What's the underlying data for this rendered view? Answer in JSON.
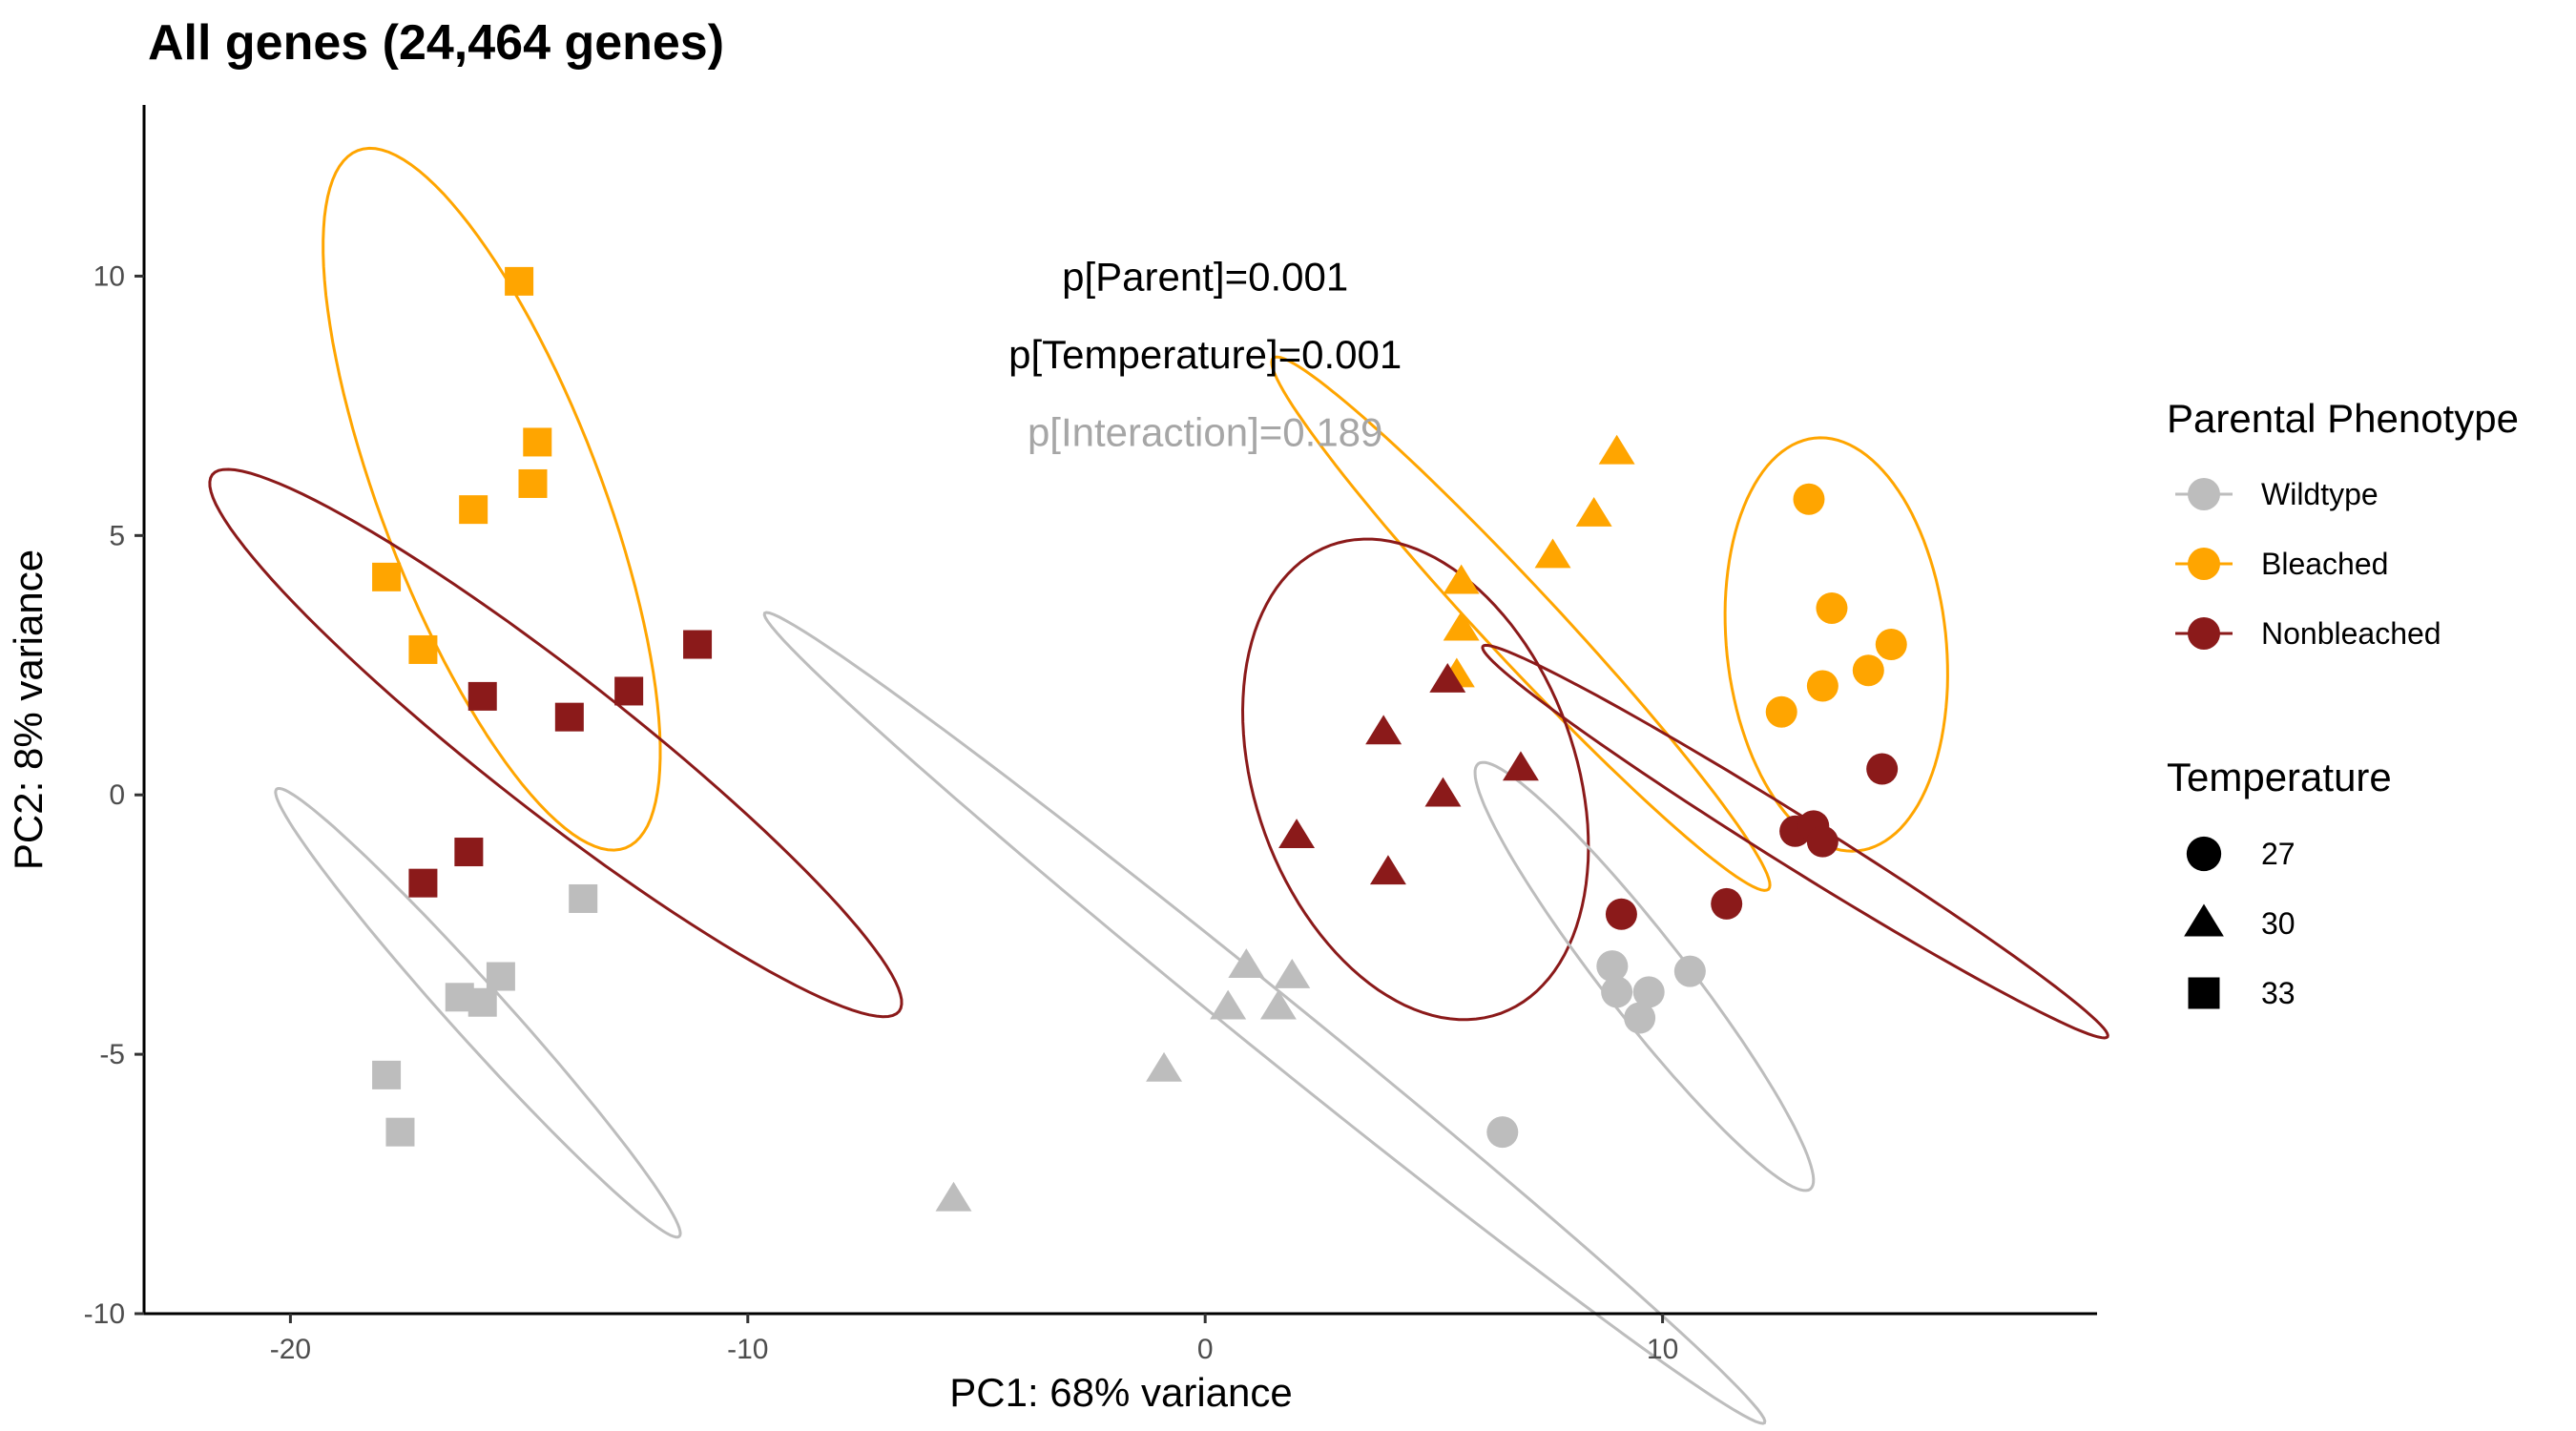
{
  "chart_data": {
    "type": "scatter",
    "title": "All genes (24,464 genes)",
    "xlabel": "PC1: 68% variance",
    "ylabel": "PC2: 8% variance",
    "xlim": [
      -23.2,
      19.5
    ],
    "ylim": [
      -10,
      13.3
    ],
    "x_ticks": [
      -20,
      -10,
      0,
      10
    ],
    "y_ticks": [
      -10,
      -5,
      0,
      5,
      10
    ],
    "x_tick_labels": [
      "-20",
      "-10",
      "0",
      "10"
    ],
    "y_tick_labels": [
      "-10",
      "-5",
      "0",
      "5",
      "10"
    ],
    "grid": false,
    "annotations": [
      {
        "text": "p[Parent]=0.001",
        "x": 0,
        "y": 10,
        "color": "#000000"
      },
      {
        "text": "p[Temperature]=0.001",
        "x": 0,
        "y": 8.5,
        "color": "#000000"
      },
      {
        "text": "p[Interaction]=0.189",
        "x": 0,
        "y": 7,
        "color": "#a6a6a6"
      }
    ],
    "phenotype_colors": {
      "Wildtype": "#bdbdbd",
      "Bleached": "#ffa500",
      "Nonbleached": "#8b1a1a"
    },
    "legend": {
      "placement": "right",
      "phenotype_title": "Parental Phenotype",
      "phenotype_items": [
        "Wildtype",
        "Bleached",
        "Nonbleached"
      ],
      "temperature_title": "Temperature",
      "temperature_items": [
        {
          "label": "27",
          "shape": "circle"
        },
        {
          "label": "30",
          "shape": "triangle"
        },
        {
          "label": "33",
          "shape": "square"
        }
      ]
    },
    "series": [
      {
        "phenotype": "Bleached",
        "temperature": "33",
        "shape": "square",
        "points": [
          [
            -15.0,
            9.9
          ],
          [
            -14.6,
            6.8
          ],
          [
            -14.7,
            6.0
          ],
          [
            -16.0,
            5.5
          ],
          [
            -17.9,
            4.2
          ],
          [
            -17.1,
            2.8
          ]
        ]
      },
      {
        "phenotype": "Nonbleached",
        "temperature": "33",
        "shape": "square",
        "points": [
          [
            -11.1,
            2.9
          ],
          [
            -12.6,
            2.0
          ],
          [
            -13.9,
            1.5
          ],
          [
            -15.8,
            1.9
          ],
          [
            -16.1,
            -1.1
          ],
          [
            -17.1,
            -1.7
          ]
        ]
      },
      {
        "phenotype": "Wildtype",
        "temperature": "33",
        "shape": "square",
        "points": [
          [
            -13.6,
            -2.0
          ],
          [
            -15.4,
            -3.5
          ],
          [
            -16.3,
            -3.9
          ],
          [
            -15.8,
            -4.0
          ],
          [
            -17.9,
            -5.4
          ],
          [
            -17.6,
            -6.5
          ]
        ]
      },
      {
        "phenotype": "Bleached",
        "temperature": "30",
        "shape": "triangle",
        "points": [
          [
            9.0,
            6.6
          ],
          [
            8.5,
            5.4
          ],
          [
            7.6,
            4.6
          ],
          [
            5.6,
            4.1
          ],
          [
            5.6,
            3.2
          ],
          [
            5.5,
            2.3
          ]
        ]
      },
      {
        "phenotype": "Nonbleached",
        "temperature": "30",
        "shape": "triangle",
        "points": [
          [
            5.3,
            2.2
          ],
          [
            3.9,
            1.2
          ],
          [
            6.9,
            0.5
          ],
          [
            5.2,
            0.0
          ],
          [
            2.0,
            -0.8
          ],
          [
            4.0,
            -1.5
          ]
        ]
      },
      {
        "phenotype": "Wildtype",
        "temperature": "30",
        "shape": "triangle",
        "points": [
          [
            0.9,
            -3.3
          ],
          [
            1.9,
            -3.5
          ],
          [
            0.5,
            -4.1
          ],
          [
            1.6,
            -4.1
          ],
          [
            -0.9,
            -5.3
          ],
          [
            -5.5,
            -7.8
          ]
        ]
      },
      {
        "phenotype": "Bleached",
        "temperature": "27",
        "shape": "circle",
        "points": [
          [
            13.2,
            5.7
          ],
          [
            13.7,
            3.6
          ],
          [
            15.0,
            2.9
          ],
          [
            14.5,
            2.4
          ],
          [
            13.5,
            2.1
          ],
          [
            12.6,
            1.6
          ]
        ]
      },
      {
        "phenotype": "Nonbleached",
        "temperature": "27",
        "shape": "circle",
        "points": [
          [
            14.8,
            0.5
          ],
          [
            12.9,
            -0.7
          ],
          [
            13.3,
            -0.6
          ],
          [
            13.5,
            -0.9
          ],
          [
            11.4,
            -2.1
          ],
          [
            9.1,
            -2.3
          ]
        ]
      },
      {
        "phenotype": "Wildtype",
        "temperature": "27",
        "shape": "circle",
        "points": [
          [
            8.9,
            -3.3
          ],
          [
            9.0,
            -3.8
          ],
          [
            9.7,
            -3.8
          ],
          [
            10.6,
            -3.4
          ],
          [
            9.5,
            -4.3
          ],
          [
            6.5,
            -6.5
          ]
        ]
      }
    ],
    "ellipses": [
      {
        "phenotype": "Bleached",
        "temperature": "33",
        "center": [
          -15.6,
          5.7
        ],
        "semi_axes": [
          2.4,
          7.2
        ],
        "angle_deg": 21
      },
      {
        "phenotype": "Nonbleached",
        "temperature": "33",
        "center": [
          -14.2,
          1.0
        ],
        "semi_axes": [
          1.5,
          8.4
        ],
        "angle_deg": 52
      },
      {
        "phenotype": "Wildtype",
        "temperature": "33",
        "center": [
          -15.9,
          -4.2
        ],
        "semi_axes": [
          0.6,
          5.8
        ],
        "angle_deg": 42
      },
      {
        "phenotype": "Bleached",
        "temperature": "30",
        "center": [
          6.9,
          3.3
        ],
        "semi_axes": [
          0.8,
          7.0
        ],
        "angle_deg": 43
      },
      {
        "phenotype": "Nonbleached",
        "temperature": "30",
        "center": [
          4.6,
          0.3
        ],
        "semi_axes": [
          3.5,
          4.8
        ],
        "angle_deg": 20
      },
      {
        "phenotype": "Wildtype",
        "temperature": "30",
        "center": [
          1.3,
          -4.3
        ],
        "semi_axes": [
          0.65,
          12.4
        ],
        "angle_deg": 51
      },
      {
        "phenotype": "Bleached",
        "temperature": "27",
        "center": [
          13.8,
          2.9
        ],
        "semi_axes": [
          2.4,
          4.0
        ],
        "angle_deg": 6
      },
      {
        "phenotype": "Nonbleached",
        "temperature": "27",
        "center": [
          12.9,
          -0.9
        ],
        "semi_axes": [
          0.55,
          7.1
        ],
        "angle_deg": 58
      },
      {
        "phenotype": "Wildtype",
        "temperature": "27",
        "center": [
          9.6,
          -3.5
        ],
        "semi_axes": [
          0.9,
          5.2
        ],
        "angle_deg": 38
      }
    ]
  }
}
